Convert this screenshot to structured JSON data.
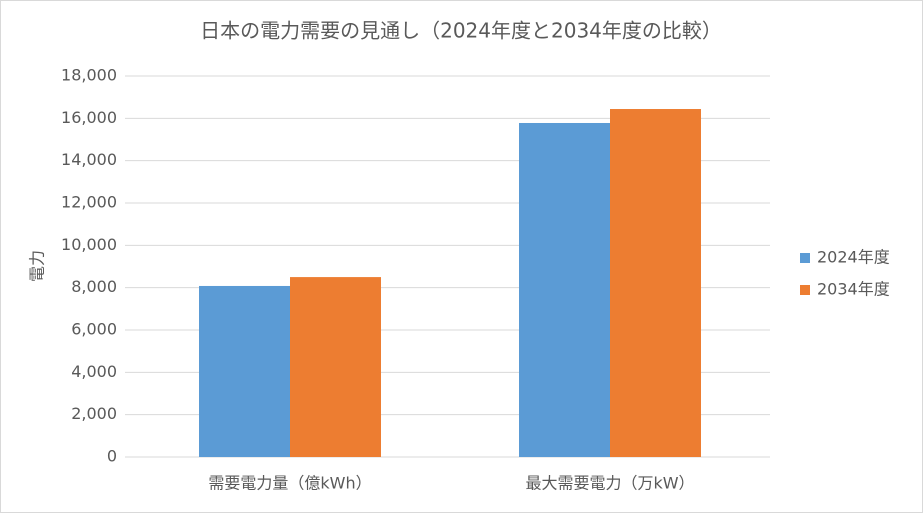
{
  "chart_data": {
    "type": "bar",
    "title": "日本の電力需要の見通し（2024年度と2034年度の比較）",
    "y_label": "電力",
    "categories": [
      "需要電力量（億kWh）",
      "最大需要電力（万kW）"
    ],
    "series": [
      {
        "name": "2024年度",
        "color": "#5b9bd5",
        "values": [
          8080,
          15780
        ]
      },
      {
        "name": "2034年度",
        "color": "#ed7d31",
        "values": [
          8500,
          16440
        ]
      }
    ],
    "ylim": [
      0,
      18000
    ],
    "yticks": [
      0,
      {
        "value": 2000,
        "label": "2,000"
      },
      {
        "value": 4000,
        "label": "4,000"
      },
      {
        "value": 6000,
        "label": "6,000"
      },
      {
        "value": 8000,
        "label": "8,000"
      },
      {
        "value": 10000,
        "label": "10,000"
      },
      {
        "value": 12000,
        "label": "12,000"
      },
      {
        "value": 14000,
        "label": "14,000"
      },
      {
        "value": 16000,
        "label": "16,000"
      },
      {
        "value": 18000,
        "label": "18,000"
      }
    ],
    "grid": true,
    "legend": "right"
  }
}
